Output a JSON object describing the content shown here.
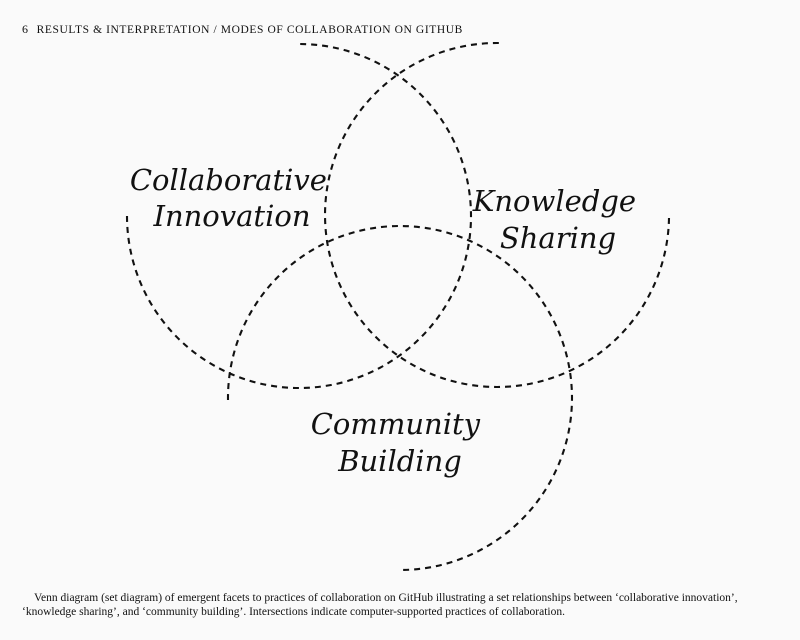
{
  "header": {
    "number": "6",
    "title": "RESULTS & INTERPRETATION / MODES OF COLLABORATION ON GITHUB"
  },
  "diagram": {
    "sets": [
      {
        "line1": "Collaborative",
        "line2": "Innovation"
      },
      {
        "line1": "Knowledge",
        "line2": "Sharing"
      },
      {
        "line1": "Community",
        "line2": "Building"
      }
    ]
  },
  "caption": "Venn diagram (set diagram) of emergent facets to practices of collaboration on GitHub illustrating a set relationships between ‘collaborative innovation’, ‘knowledge sharing’, and ‘community building’. Intersections indicate computer-supported practices of collaboration."
}
